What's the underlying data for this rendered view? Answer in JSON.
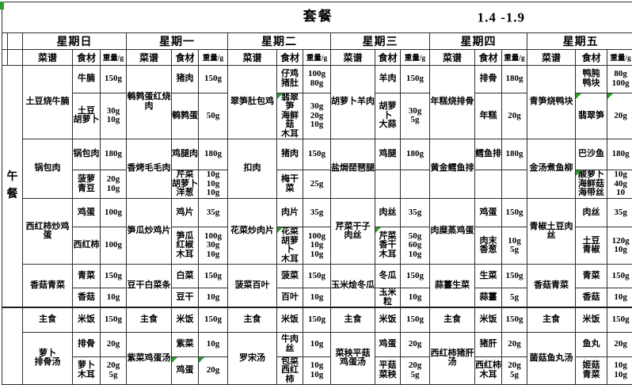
{
  "title": {
    "meal_label": "套餐",
    "date_range": "1.4 -1.9"
  },
  "column_headers": {
    "dish": "菜谱",
    "ingredient": "食材",
    "weight": "重量/g"
  },
  "section_label": "午餐",
  "flag_color": "#2e9b2e",
  "days": [
    {
      "name": "星期日",
      "dishes": [
        {
          "name": "土豆烧牛腩",
          "rows": [
            {
              "ing": "牛腩",
              "wt": "150g"
            },
            {
              "ing": "土豆\n胡萝卜",
              "wt": "30g\n10g"
            }
          ]
        },
        {
          "name": "锅包肉",
          "rows": [
            {
              "ing": "锅包肉",
              "wt": "180g"
            },
            {
              "ing": "菠萝\n青豆",
              "wt": "20g\n10g"
            }
          ]
        },
        {
          "name": "西红柿炒鸡蛋",
          "rows": [
            {
              "ing": "鸡蛋",
              "wt": "100g"
            },
            {
              "ing": "西红柿",
              "wt": "100g"
            }
          ]
        },
        {
          "name": "香菇青菜",
          "rows": [
            {
              "ing": "青菜",
              "wt": "150g"
            },
            {
              "ing": "香菇",
              "wt": "10g"
            }
          ]
        },
        {
          "name": "主食",
          "rows": [
            {
              "ing": "米饭",
              "wt": "150g"
            }
          ]
        },
        {
          "name": "萝卜\n排骨汤",
          "rows": [
            {
              "ing": "排骨",
              "wt": "20g"
            },
            {
              "ing": "萝卜\n木耳",
              "wt": "20g\n5g"
            }
          ]
        }
      ]
    },
    {
      "name": "星期一",
      "dishes": [
        {
          "name": "鹌鹑蛋红烧肉",
          "rows": [
            {
              "ing": "猪肉",
              "wt": "150g"
            },
            {
              "ing": "鹌鹑蛋",
              "wt": "50g"
            }
          ]
        },
        {
          "name": "香烤毛毛肉",
          "rows": [
            {
              "ing": "鸡腿肉",
              "wt": "180g"
            },
            {
              "ing": "芹菜\n胡萝卜\n洋葱",
              "wt": "10g\n10g\n10g"
            }
          ]
        },
        {
          "name": "笋瓜炒鸡片",
          "rows": [
            {
              "ing": "鸡片",
              "wt": "35g"
            },
            {
              "ing": "笋瓜\n红椒\n木耳",
              "wt": "100g\n30g\n10g"
            }
          ]
        },
        {
          "name": "豆干白菜条",
          "rows": [
            {
              "ing": "白菜",
              "wt": "150g"
            },
            {
              "ing": "豆干",
              "wt": "10g"
            }
          ]
        },
        {
          "name": "主食",
          "rows": [
            {
              "ing": "米饭",
              "wt": "150g"
            }
          ]
        },
        {
          "name": "紫菜鸡蛋汤",
          "rows": [
            {
              "ing": "紫菜",
              "wt": "10g"
            },
            {
              "ing": "鸡蛋",
              "wt": "20g",
              "flag_ing": true,
              "flag_wt": true
            }
          ]
        }
      ]
    },
    {
      "name": "星期二",
      "dishes": [
        {
          "name": "翠笋肚包鸡",
          "rows": [
            {
              "ing": "仔鸡\n猪肚",
              "wt": "100g\n80g"
            },
            {
              "ing": "翡翠笋\n海鲜菇\n木耳",
              "wt": "30g\n20g\n10g",
              "flag_ing": true
            }
          ]
        },
        {
          "name": "扣肉",
          "rows": [
            {
              "ing": "猪肉",
              "wt": "150g"
            },
            {
              "ing": "梅干菜",
              "wt": "25g"
            }
          ]
        },
        {
          "name": "花菜炒肉片",
          "rows": [
            {
              "ing": "肉片",
              "wt": "35g"
            },
            {
              "ing": "花菜\n胡萝卜\n木耳",
              "wt": "100g\n10g\n10g",
              "flag_ing": true
            }
          ]
        },
        {
          "name": "菠菜百叶",
          "rows": [
            {
              "ing": "菠菜",
              "wt": "150g"
            },
            {
              "ing": "百叶",
              "wt": "10g"
            }
          ]
        },
        {
          "name": "主食",
          "rows": [
            {
              "ing": "米饭",
              "wt": "150g"
            }
          ]
        },
        {
          "name": "罗宋汤",
          "rows": [
            {
              "ing": "牛肉丝",
              "wt": "10g"
            },
            {
              "ing": "包菜\n西红柿",
              "wt": "10g\n10g"
            }
          ]
        }
      ]
    },
    {
      "name": "星期三",
      "dishes": [
        {
          "name": "胡萝卜羊肉",
          "rows": [
            {
              "ing": "羊肉",
              "wt": "150g"
            },
            {
              "ing": "胡萝卜\n大蒜",
              "wt": "30g\n5g"
            }
          ]
        },
        {
          "name": "盐焗琵琶腿",
          "rows": [
            {
              "ing": "鸡腿",
              "wt": "180g"
            },
            {
              "ing": "",
              "wt": ""
            }
          ]
        },
        {
          "name": "芹菜干子\n肉丝",
          "rows": [
            {
              "ing": "肉丝",
              "wt": "35g"
            },
            {
              "ing": "芹菜\n香干\n木耳",
              "wt": "50g\n60g\n10g",
              "flag_ing": true
            }
          ]
        },
        {
          "name": "玉米烩冬瓜",
          "rows": [
            {
              "ing": "冬瓜",
              "wt": "150g"
            },
            {
              "ing": "玉米粒",
              "wt": "10g"
            }
          ]
        },
        {
          "name": "主食",
          "rows": [
            {
              "ing": "米饭",
              "wt": "150g"
            }
          ]
        },
        {
          "name": "菜秧平菇\n鸡蛋汤",
          "rows": [
            {
              "ing": "鸡蛋",
              "wt": "20g"
            },
            {
              "ing": "平菇\n菜秧",
              "wt": "20g\n5g"
            }
          ]
        }
      ]
    },
    {
      "name": "星期四",
      "dishes": [
        {
          "name": "年糕烧排骨",
          "rows": [
            {
              "ing": "排骨",
              "wt": "180g"
            },
            {
              "ing": "年糕",
              "wt": "20g"
            }
          ]
        },
        {
          "name": "黄金鳕鱼排",
          "rows": [
            {
              "ing": "鳕鱼排",
              "wt": "180g"
            },
            {
              "ing": "",
              "wt": ""
            }
          ]
        },
        {
          "name": "肉糜蒸鸡蛋",
          "rows": [
            {
              "ing": "鸡蛋",
              "wt": "150g"
            },
            {
              "ing": "肉末\n香葱",
              "wt": "10g\n5g"
            }
          ]
        },
        {
          "name": "蒜薹生菜",
          "rows": [
            {
              "ing": "生菜",
              "wt": "150g"
            },
            {
              "ing": "蒜薹",
              "wt": "5g"
            }
          ]
        },
        {
          "name": "主食",
          "rows": [
            {
              "ing": "米饭",
              "wt": "150g"
            }
          ]
        },
        {
          "name": "西红柿猪肝\n汤",
          "rows": [
            {
              "ing": "猪肝",
              "wt": "20g"
            },
            {
              "ing": "西红柿\n木耳",
              "wt": "20g\n5g"
            }
          ]
        }
      ]
    },
    {
      "name": "星期五",
      "dishes": [
        {
          "name": "青笋烧鸭块",
          "rows": [
            {
              "ing": "鸭肫\n鸭块",
              "wt": "80g\n100g"
            },
            {
              "ing": "翡翠笋",
              "wt": "20g",
              "flag_ing": true,
              "flag_wt": true
            }
          ]
        },
        {
          "name": "金汤煮鱼柳",
          "rows": [
            {
              "ing": "巴沙鱼",
              "wt": "180g"
            },
            {
              "ing": "酸萝卜\n海鲜菇\n海带丝",
              "wt": "10g\n40g\n10",
              "flag_ing": true
            }
          ]
        },
        {
          "name": "青椒土豆肉丝",
          "rows": [
            {
              "ing": "肉丝",
              "wt": "35g"
            },
            {
              "ing": "土豆\n青椒",
              "wt": "120g\n10g"
            }
          ]
        },
        {
          "name": "香菇青菜",
          "rows": [
            {
              "ing": "青菜",
              "wt": "150g"
            },
            {
              "ing": "香菇",
              "wt": "10g"
            }
          ]
        },
        {
          "name": "主食",
          "rows": [
            {
              "ing": "米饭",
              "wt": "150g"
            }
          ]
        },
        {
          "name": "菌菇鱼丸汤",
          "rows": [
            {
              "ing": "鱼丸",
              "wt": "20g"
            },
            {
              "ing": "姬菇\n青菜",
              "wt": "10g\n10g"
            }
          ]
        }
      ]
    }
  ]
}
